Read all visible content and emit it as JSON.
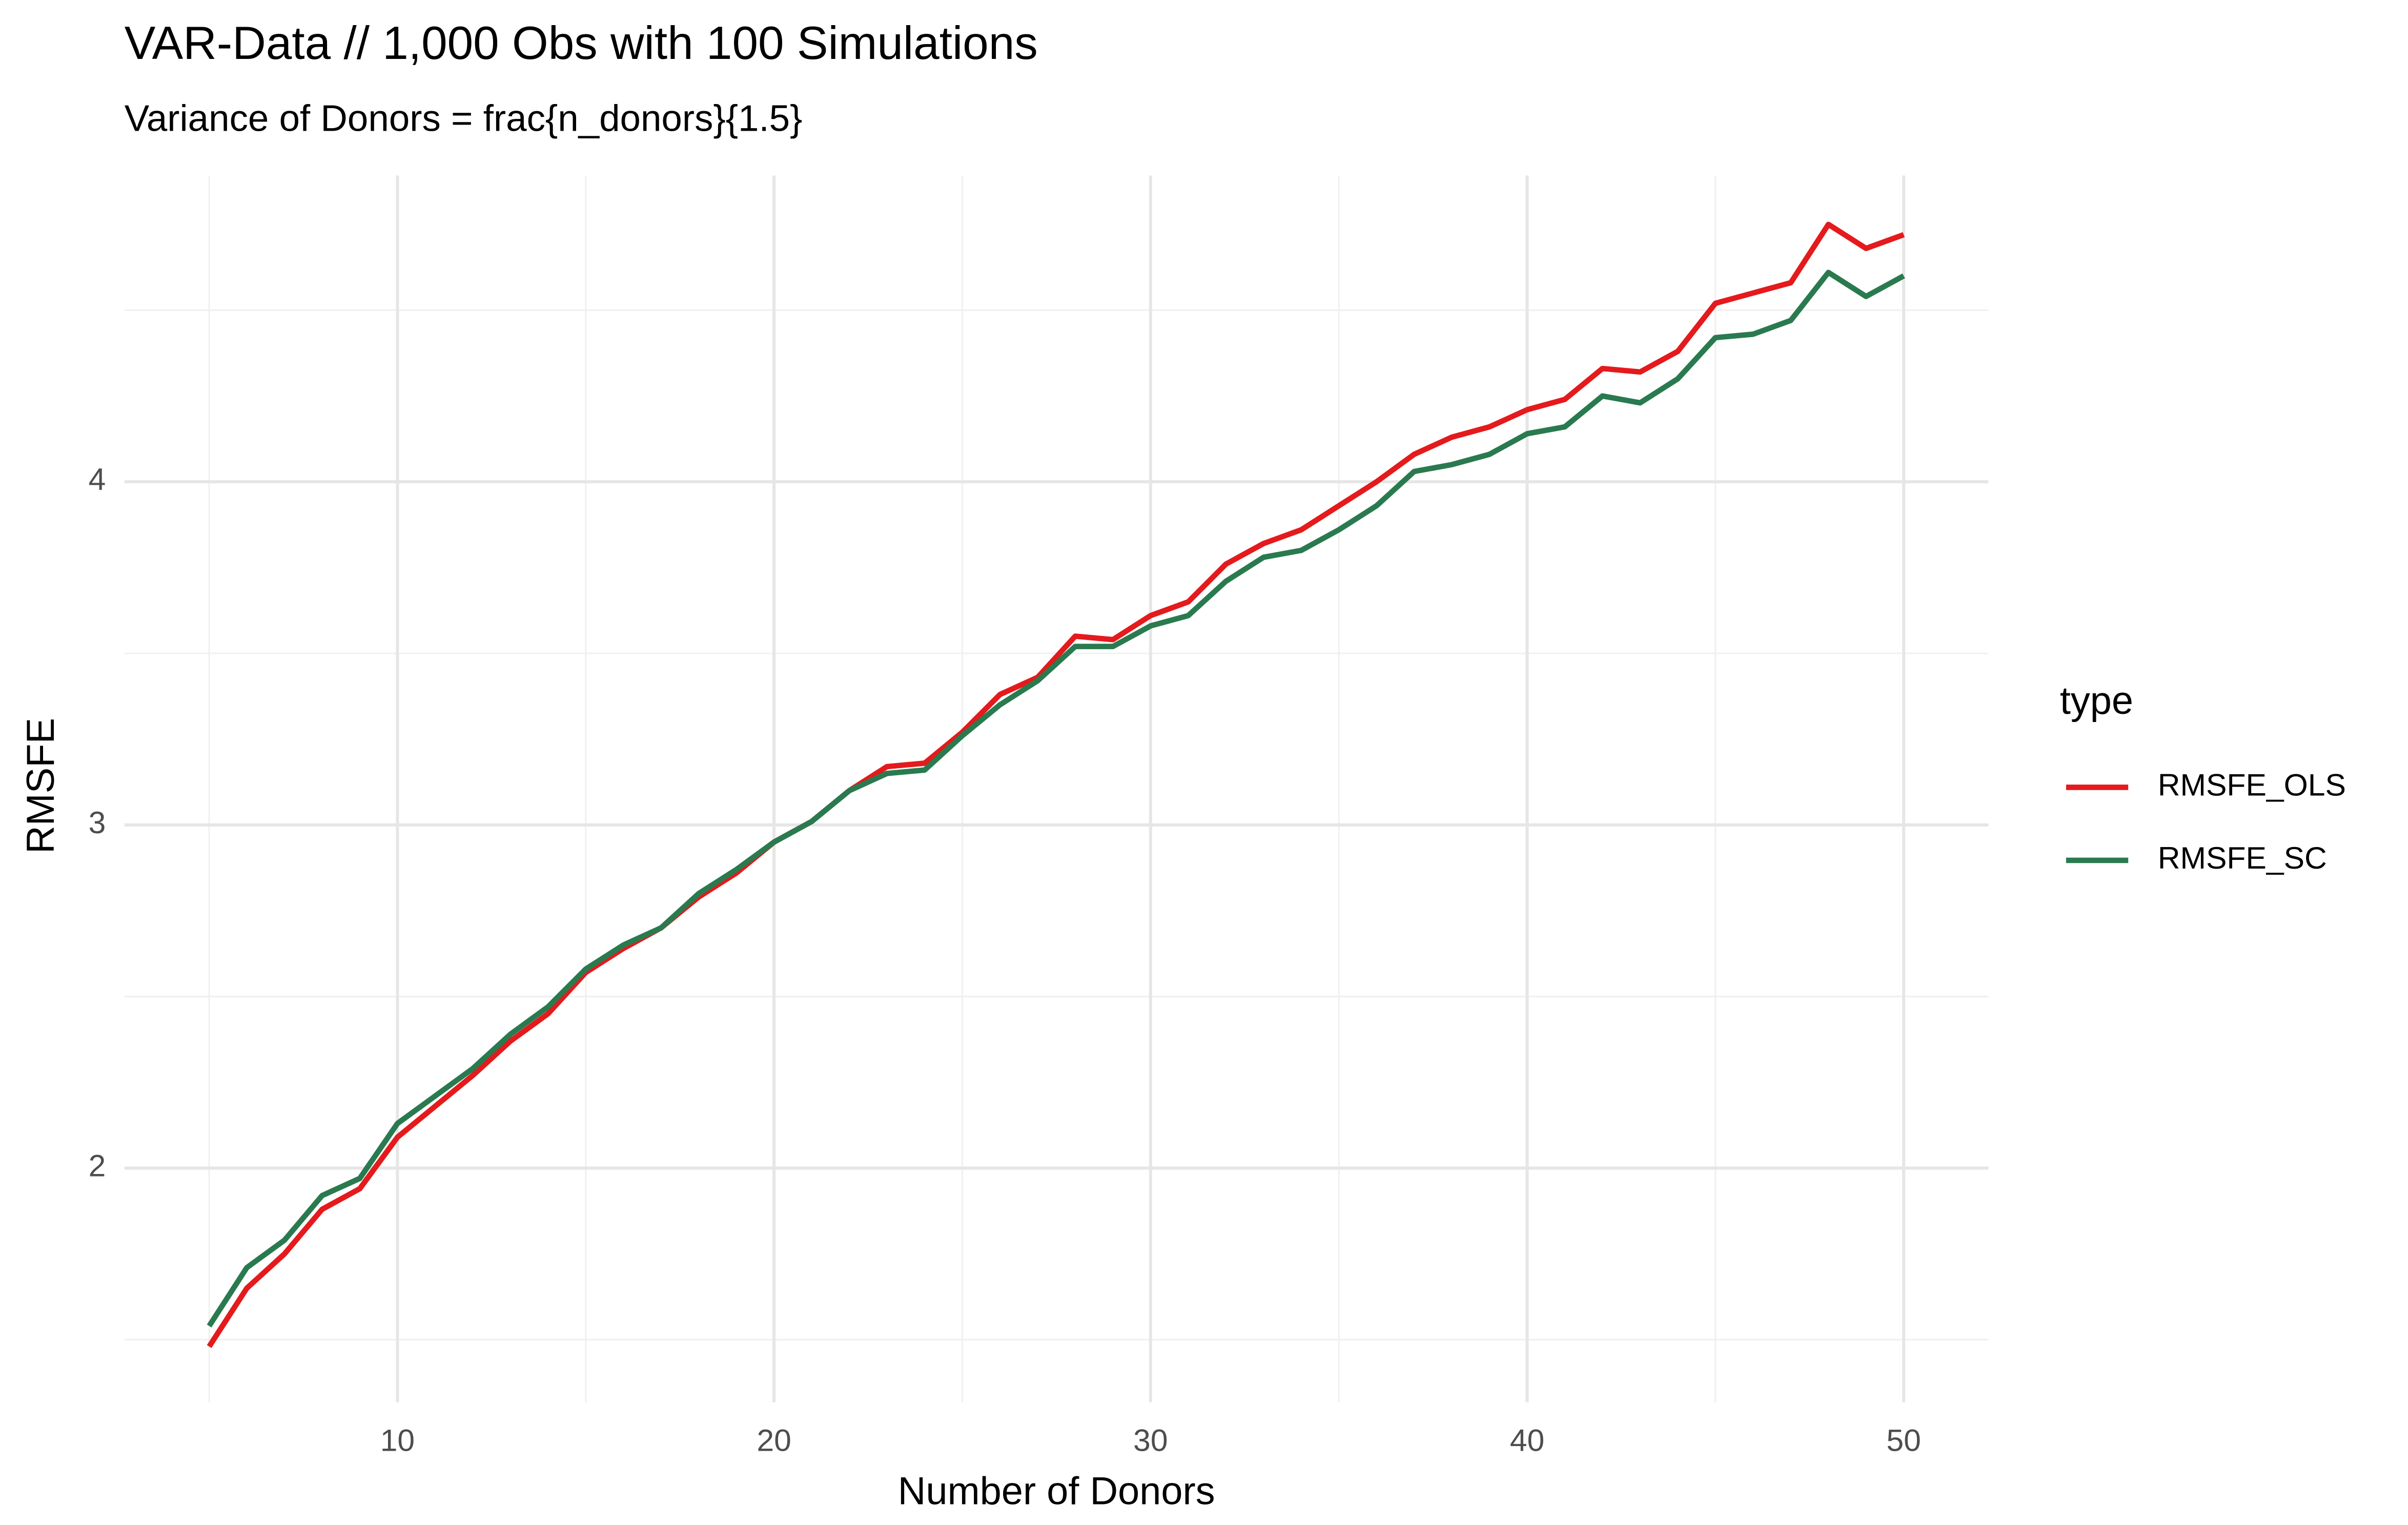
{
  "chart_data": {
    "type": "line",
    "title": "VAR-Data // 1,000 Obs with 100 Simulations",
    "subtitle": "Variance of Donors = frac{n_donors}{1.5}",
    "x_label": "Number of Donors",
    "y_label": "RMSFE",
    "legend_title": "type",
    "legend_position": "right",
    "grid": true,
    "x": [
      5,
      6,
      7,
      8,
      9,
      10,
      11,
      12,
      13,
      14,
      15,
      16,
      17,
      18,
      19,
      20,
      21,
      22,
      23,
      24,
      25,
      26,
      27,
      28,
      29,
      30,
      31,
      32,
      33,
      34,
      35,
      36,
      37,
      38,
      39,
      40,
      41,
      42,
      43,
      44,
      45,
      46,
      47,
      48,
      49,
      50
    ],
    "series": [
      {
        "name": "RMSFE_OLS",
        "color": "#e41a1c",
        "values": [
          1.48,
          1.65,
          1.75,
          1.88,
          1.94,
          2.09,
          2.18,
          2.27,
          2.37,
          2.45,
          2.57,
          2.64,
          2.7,
          2.79,
          2.86,
          2.95,
          3.01,
          3.1,
          3.17,
          3.18,
          3.27,
          3.38,
          3.43,
          3.55,
          3.54,
          3.61,
          3.65,
          3.76,
          3.82,
          3.86,
          3.93,
          4.0,
          4.08,
          4.13,
          4.16,
          4.21,
          4.24,
          4.33,
          4.32,
          4.38,
          4.52,
          4.55,
          4.58,
          4.75,
          4.68,
          4.72
        ]
      },
      {
        "name": "RMSFE_SC",
        "color": "#2a7a4f",
        "values": [
          1.54,
          1.71,
          1.79,
          1.92,
          1.97,
          2.13,
          2.21,
          2.29,
          2.39,
          2.47,
          2.58,
          2.65,
          2.7,
          2.8,
          2.87,
          2.95,
          3.01,
          3.1,
          3.15,
          3.16,
          3.26,
          3.35,
          3.42,
          3.52,
          3.52,
          3.58,
          3.61,
          3.71,
          3.78,
          3.8,
          3.86,
          3.93,
          4.03,
          4.05,
          4.08,
          4.14,
          4.16,
          4.25,
          4.23,
          4.3,
          4.42,
          4.43,
          4.47,
          4.61,
          4.54,
          4.6
        ]
      }
    ],
    "xlim": [
      2.75,
      52.25
    ],
    "xticks": [
      10,
      20,
      30,
      40,
      50
    ],
    "ylim": [
      1.3175,
      4.8925
    ],
    "yticks": [
      2,
      3,
      4
    ]
  }
}
